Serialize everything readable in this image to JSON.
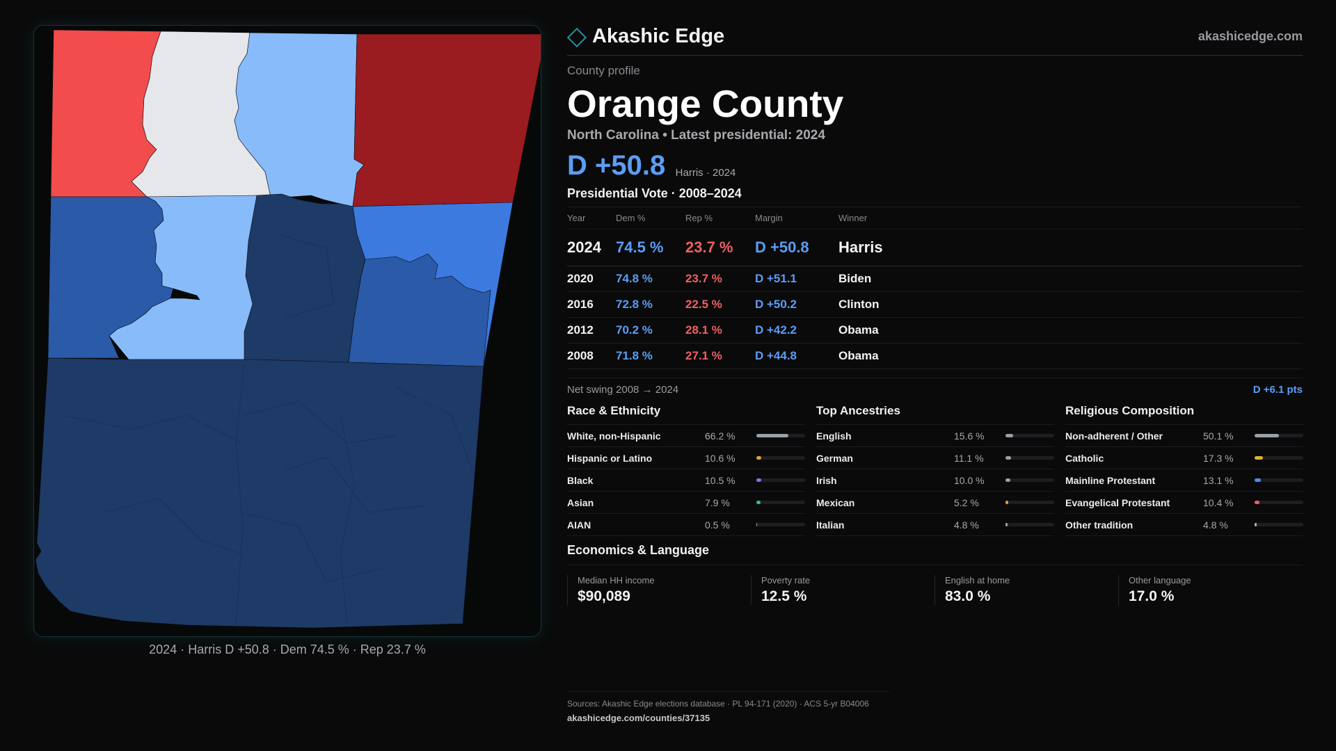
{
  "brand": {
    "name": "Akashic Edge",
    "url": "akashicedge.com"
  },
  "profile": {
    "kicker": "County profile",
    "county": "Orange County",
    "subtitle": "North Carolina • Latest presidential: 2024",
    "margin_label": "D +50.8",
    "margin_note": "Harris · 2024"
  },
  "votes": {
    "heading": "Presidential Vote · 2008–2024",
    "columns": [
      "Year",
      "Dem %",
      "Rep %",
      "Margin",
      "Winner"
    ],
    "rows": [
      {
        "year": "2024",
        "dem": "74.5 %",
        "rep": "23.7 %",
        "margin": "D +50.8",
        "winner": "Harris"
      },
      {
        "year": "2020",
        "dem": "74.8 %",
        "rep": "23.7 %",
        "margin": "D +51.1",
        "winner": "Biden"
      },
      {
        "year": "2016",
        "dem": "72.8 %",
        "rep": "22.5 %",
        "margin": "D +50.2",
        "winner": "Clinton"
      },
      {
        "year": "2012",
        "dem": "70.2 %",
        "rep": "28.1 %",
        "margin": "D +42.2",
        "winner": "Obama"
      },
      {
        "year": "2008",
        "dem": "71.8 %",
        "rep": "27.1 %",
        "margin": "D +44.8",
        "winner": "Obama"
      }
    ],
    "swing_label": "Net swing 2008 → 2024",
    "swing_value": "D +6.1 pts"
  },
  "race": {
    "title": "Race & Ethnicity",
    "items": [
      {
        "label": "White, non-Hispanic",
        "value": "66.2 %",
        "pct": 66.2,
        "color": "#9aa0a8"
      },
      {
        "label": "Hispanic or Latino",
        "value": "10.6 %",
        "pct": 10.6,
        "color": "#e0a030"
      },
      {
        "label": "Black",
        "value": "10.5 %",
        "pct": 10.5,
        "color": "#8a70e0"
      },
      {
        "label": "Asian",
        "value": "7.9 %",
        "pct": 7.9,
        "color": "#30c090"
      },
      {
        "label": "AIAN",
        "value": "0.5 %",
        "pct": 0.5,
        "color": "#9aa0a8"
      }
    ]
  },
  "ancestry": {
    "title": "Top Ancestries",
    "items": [
      {
        "label": "English",
        "value": "15.6 %",
        "pct": 15.6,
        "color": "#9aa0a8"
      },
      {
        "label": "German",
        "value": "11.1 %",
        "pct": 11.1,
        "color": "#9aa0a8"
      },
      {
        "label": "Irish",
        "value": "10.0 %",
        "pct": 10.0,
        "color": "#9aa0a8"
      },
      {
        "label": "Mexican",
        "value": "5.2 %",
        "pct": 5.2,
        "color": "#e0a030"
      },
      {
        "label": "Italian",
        "value": "4.8 %",
        "pct": 4.8,
        "color": "#9aa0a8"
      }
    ]
  },
  "religion": {
    "title": "Religious Composition",
    "items": [
      {
        "label": "Non-adherent / Other",
        "value": "50.1 %",
        "pct": 50.1,
        "color": "#9aa0a8"
      },
      {
        "label": "Catholic",
        "value": "17.3 %",
        "pct": 17.3,
        "color": "#e0b030"
      },
      {
        "label": "Mainline Protestant",
        "value": "13.1 %",
        "pct": 13.1,
        "color": "#4a8ef0"
      },
      {
        "label": "Evangelical Protestant",
        "value": "10.4 %",
        "pct": 10.4,
        "color": "#f06060"
      },
      {
        "label": "Other tradition",
        "value": "4.8 %",
        "pct": 4.8,
        "color": "#b0b0b8"
      }
    ]
  },
  "economics": {
    "title": "Economics & Language",
    "items": [
      {
        "label": "Median HH income",
        "value": "$90,089"
      },
      {
        "label": "Poverty rate",
        "value": "12.5 %"
      },
      {
        "label": "English at home",
        "value": "83.0 %"
      },
      {
        "label": "Other language",
        "value": "17.0 %"
      }
    ]
  },
  "map": {
    "caption": "2024 · Harris D +50.8 · Dem 74.5 % · Rep 23.7 %",
    "colors": {
      "strong_rep": "#9b1c20",
      "lean_rep": "#f24c4c",
      "tossup": "#e6e7ea",
      "lean_dem": "#88bbfa",
      "likely_dem": "#3c7ae0",
      "safe_dem": "#2a5aa8",
      "solid_dem": "#1e3a66"
    }
  },
  "sources": {
    "line1": "Sources: Akashic Edge elections database · PL 94-171 (2020) · ACS 5-yr B04006",
    "line2": "akashicedge.com/counties/37135"
  }
}
